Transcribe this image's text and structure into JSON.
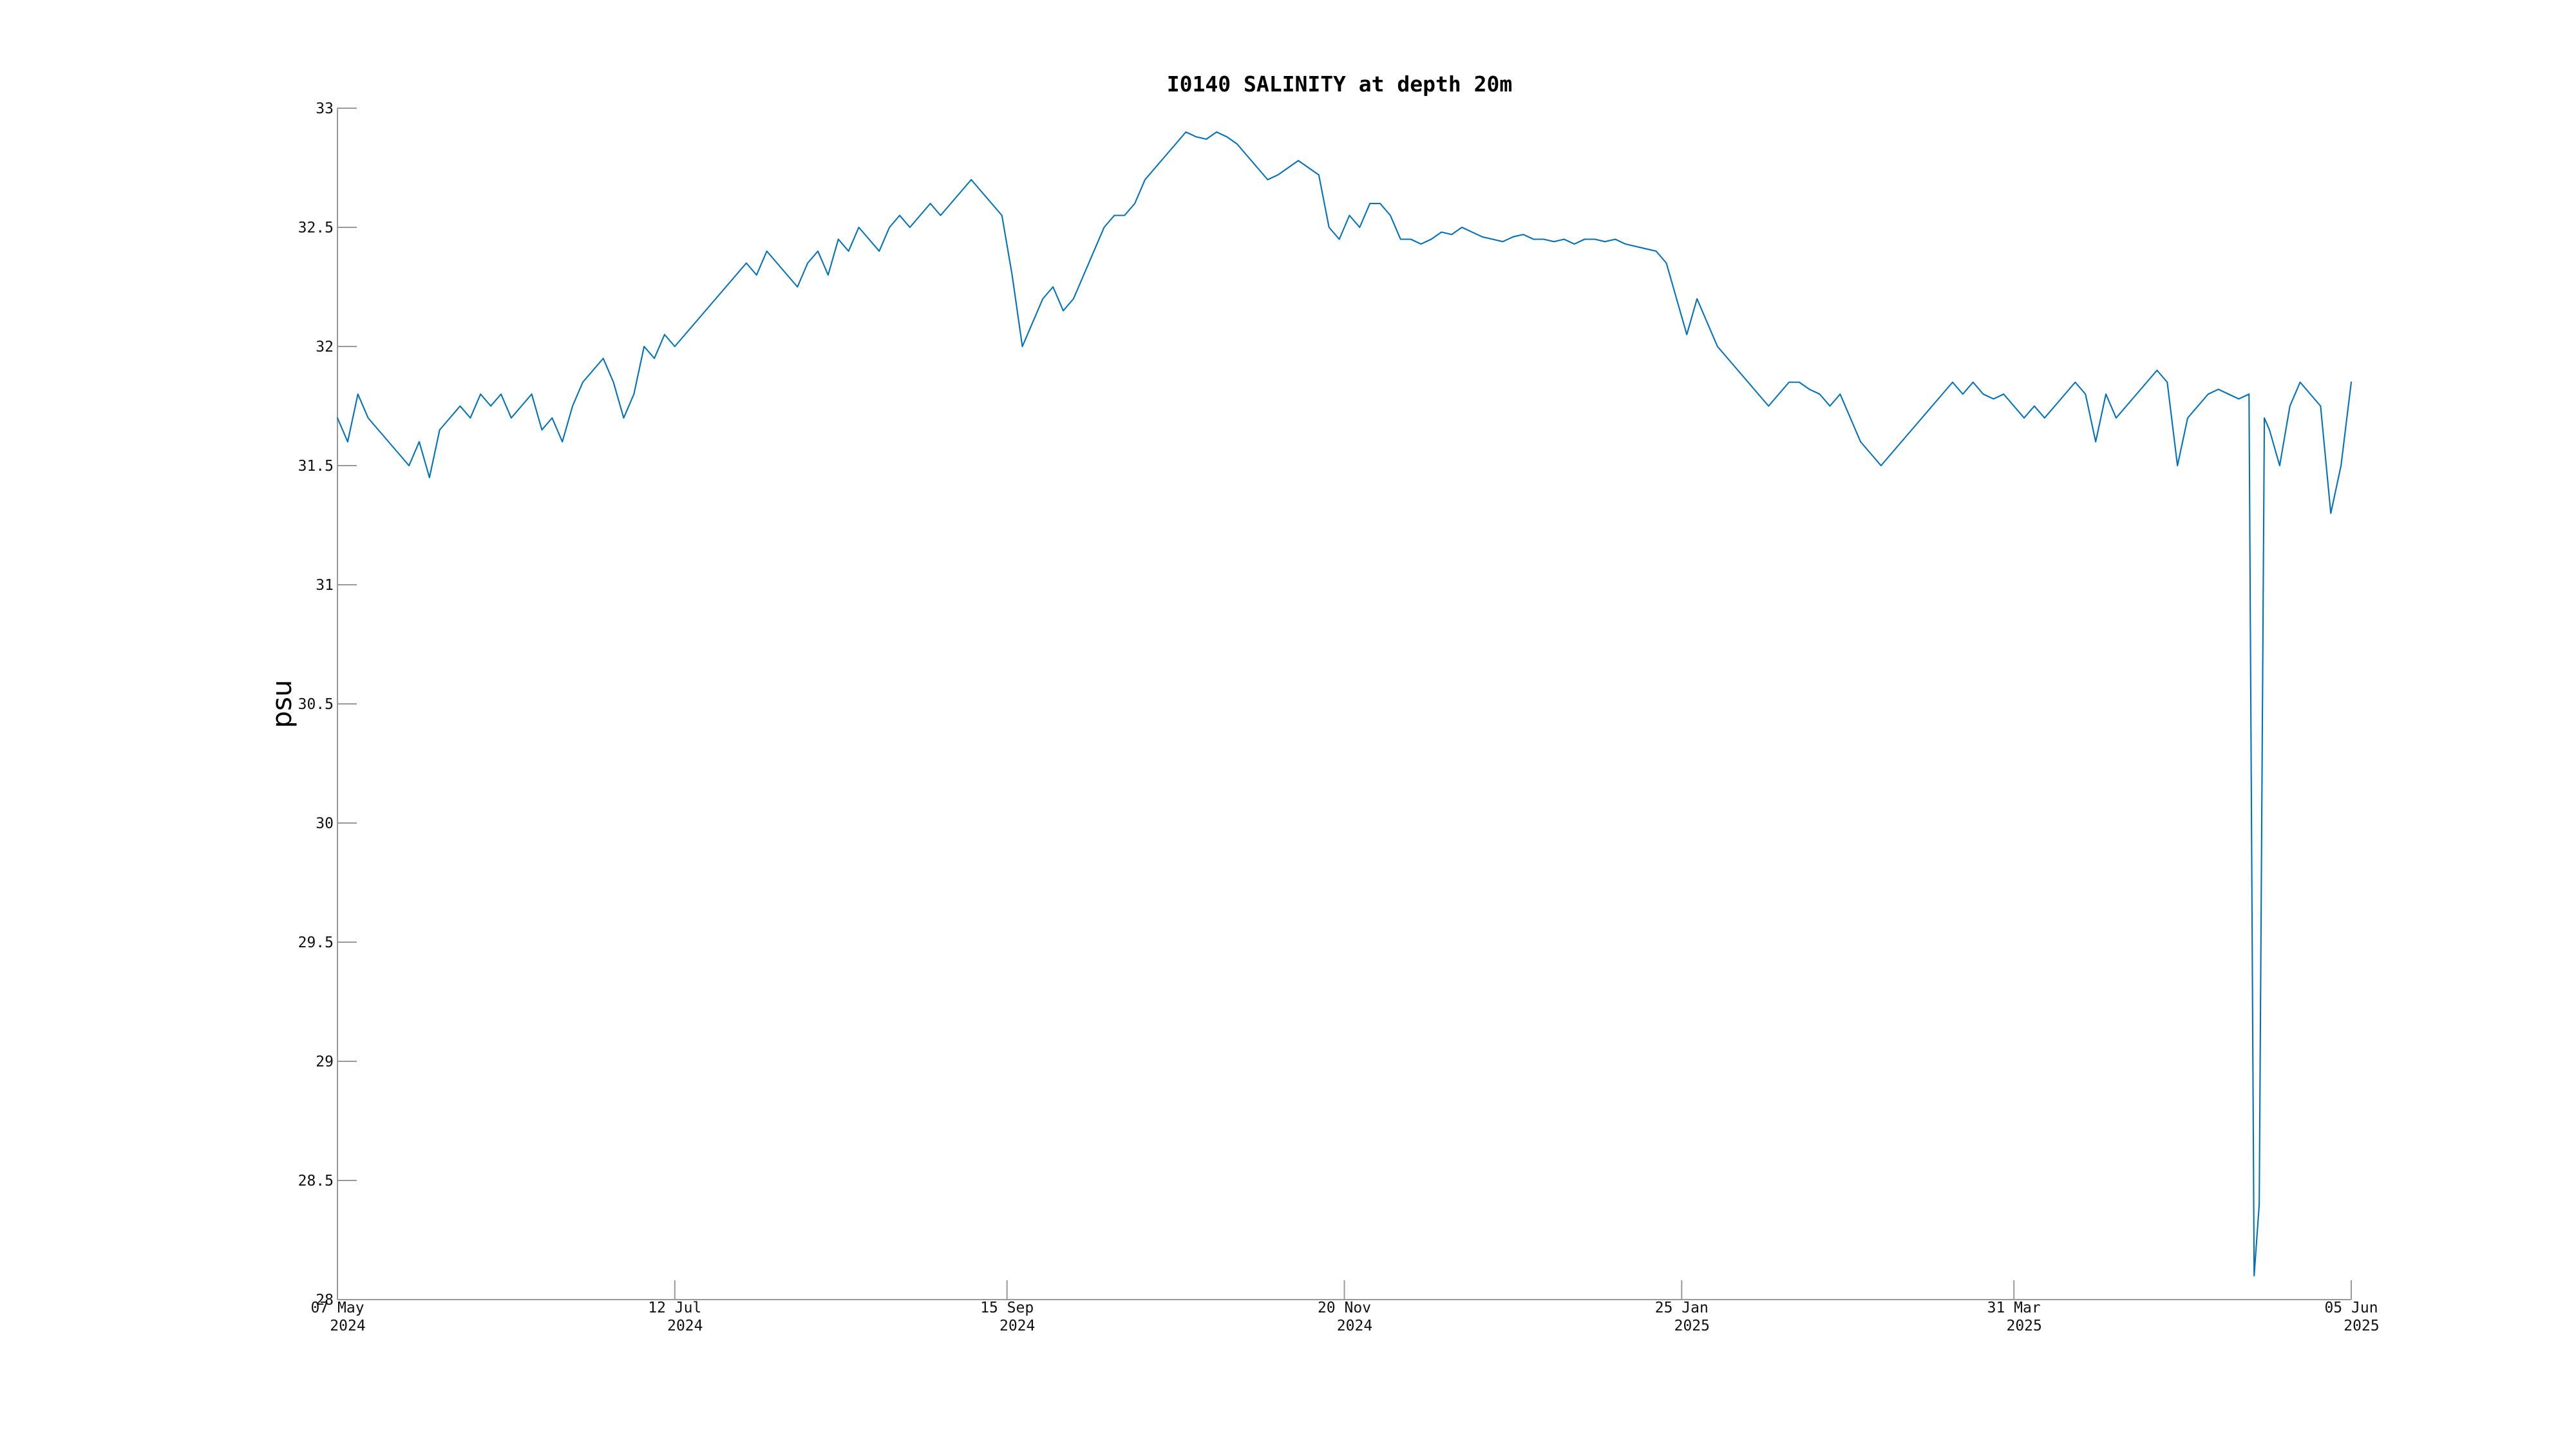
{
  "chart_data": {
    "type": "line",
    "title": "I0140 SALINITY at depth 20m",
    "xlabel": "",
    "ylabel": "psu",
    "xlim": [
      "2024-05-07",
      "2025-06-05"
    ],
    "ylim": [
      28,
      33
    ],
    "grid": false,
    "yticks": [
      {
        "value": 28,
        "label": "28"
      },
      {
        "value": 28.5,
        "label": "28.5"
      },
      {
        "value": 29,
        "label": "29"
      },
      {
        "value": 29.5,
        "label": "29.5"
      },
      {
        "value": 30,
        "label": "30"
      },
      {
        "value": 30.5,
        "label": "30.5"
      },
      {
        "value": 31,
        "label": "31"
      },
      {
        "value": 31.5,
        "label": "31.5"
      },
      {
        "value": 32,
        "label": "32"
      },
      {
        "value": 32.5,
        "label": "32.5"
      },
      {
        "value": 33,
        "label": "33"
      }
    ],
    "xticks": [
      {
        "value": "2024-05-07",
        "label1": "07 May",
        "label2": "2024"
      },
      {
        "value": "2024-07-12",
        "label1": "12 Jul",
        "label2": "2024"
      },
      {
        "value": "2024-09-15",
        "label1": "15 Sep",
        "label2": "2024"
      },
      {
        "value": "2024-11-20",
        "label1": "20 Nov",
        "label2": "2024"
      },
      {
        "value": "2025-01-25",
        "label1": "25 Jan",
        "label2": "2025"
      },
      {
        "value": "2025-03-31",
        "label1": "31 Mar",
        "label2": "2025"
      },
      {
        "value": "2025-06-05",
        "label1": "05 Jun",
        "label2": "2025"
      }
    ],
    "series": [
      {
        "color": "#0072bd",
        "x": [
          "2024-05-07",
          "2024-05-09",
          "2024-05-11",
          "2024-05-13",
          "2024-05-15",
          "2024-05-17",
          "2024-05-19",
          "2024-05-21",
          "2024-05-23",
          "2024-05-25",
          "2024-05-27",
          "2024-05-29",
          "2024-05-31",
          "2024-06-02",
          "2024-06-04",
          "2024-06-06",
          "2024-06-08",
          "2024-06-10",
          "2024-06-12",
          "2024-06-14",
          "2024-06-16",
          "2024-06-18",
          "2024-06-20",
          "2024-06-22",
          "2024-06-24",
          "2024-06-26",
          "2024-06-28",
          "2024-06-30",
          "2024-07-02",
          "2024-07-04",
          "2024-07-06",
          "2024-07-08",
          "2024-07-10",
          "2024-07-12",
          "2024-07-14",
          "2024-07-16",
          "2024-07-18",
          "2024-07-20",
          "2024-07-22",
          "2024-07-24",
          "2024-07-26",
          "2024-07-28",
          "2024-07-30",
          "2024-08-01",
          "2024-08-03",
          "2024-08-05",
          "2024-08-07",
          "2024-08-09",
          "2024-08-11",
          "2024-08-13",
          "2024-08-15",
          "2024-08-17",
          "2024-08-19",
          "2024-08-21",
          "2024-08-23",
          "2024-08-25",
          "2024-08-27",
          "2024-08-29",
          "2024-08-31",
          "2024-09-02",
          "2024-09-04",
          "2024-09-06",
          "2024-09-08",
          "2024-09-10",
          "2024-09-12",
          "2024-09-14",
          "2024-09-16",
          "2024-09-18",
          "2024-09-20",
          "2024-09-22",
          "2024-09-24",
          "2024-09-26",
          "2024-09-28",
          "2024-09-30",
          "2024-10-02",
          "2024-10-04",
          "2024-10-06",
          "2024-10-08",
          "2024-10-10",
          "2024-10-12",
          "2024-10-14",
          "2024-10-16",
          "2024-10-18",
          "2024-10-20",
          "2024-10-22",
          "2024-10-24",
          "2024-10-26",
          "2024-10-28",
          "2024-10-30",
          "2024-11-01",
          "2024-11-03",
          "2024-11-05",
          "2024-11-07",
          "2024-11-09",
          "2024-11-11",
          "2024-11-13",
          "2024-11-15",
          "2024-11-17",
          "2024-11-19",
          "2024-11-21",
          "2024-11-23",
          "2024-11-25",
          "2024-11-27",
          "2024-11-29",
          "2024-12-01",
          "2024-12-03",
          "2024-12-05",
          "2024-12-07",
          "2024-12-09",
          "2024-12-11",
          "2024-12-13",
          "2024-12-15",
          "2024-12-17",
          "2024-12-19",
          "2024-12-21",
          "2024-12-23",
          "2024-12-25",
          "2024-12-27",
          "2024-12-29",
          "2024-12-31",
          "2025-01-02",
          "2025-01-04",
          "2025-01-06",
          "2025-01-08",
          "2025-01-10",
          "2025-01-12",
          "2025-01-14",
          "2025-01-16",
          "2025-01-18",
          "2025-01-20",
          "2025-01-22",
          "2025-01-24",
          "2025-01-26",
          "2025-01-28",
          "2025-01-30",
          "2025-02-01",
          "2025-02-03",
          "2025-02-05",
          "2025-02-07",
          "2025-02-09",
          "2025-02-11",
          "2025-02-13",
          "2025-02-15",
          "2025-02-17",
          "2025-02-19",
          "2025-02-21",
          "2025-02-23",
          "2025-02-25",
          "2025-02-27",
          "2025-03-01",
          "2025-03-03",
          "2025-03-05",
          "2025-03-07",
          "2025-03-09",
          "2025-03-11",
          "2025-03-13",
          "2025-03-15",
          "2025-03-17",
          "2025-03-19",
          "2025-03-21",
          "2025-03-23",
          "2025-03-25",
          "2025-03-27",
          "2025-03-29",
          "2025-03-31",
          "2025-04-02",
          "2025-04-04",
          "2025-04-06",
          "2025-04-08",
          "2025-04-10",
          "2025-04-12",
          "2025-04-14",
          "2025-04-16",
          "2025-04-18",
          "2025-04-20",
          "2025-04-22",
          "2025-04-24",
          "2025-04-26",
          "2025-04-28",
          "2025-04-30",
          "2025-05-02",
          "2025-05-04",
          "2025-05-06",
          "2025-05-08",
          "2025-05-10",
          "2025-05-12",
          "2025-05-14",
          "2025-05-16",
          "2025-05-17",
          "2025-05-18",
          "2025-05-19",
          "2025-05-20",
          "2025-05-22",
          "2025-05-24",
          "2025-05-26",
          "2025-05-28",
          "2025-05-30",
          "2025-06-01",
          "2025-06-03",
          "2025-06-05"
        ],
        "y": [
          31.7,
          31.6,
          31.8,
          31.7,
          31.65,
          31.6,
          31.55,
          31.5,
          31.6,
          31.45,
          31.65,
          31.7,
          31.75,
          31.7,
          31.8,
          31.75,
          31.8,
          31.7,
          31.75,
          31.8,
          31.65,
          31.7,
          31.6,
          31.75,
          31.85,
          31.9,
          31.95,
          31.85,
          31.7,
          31.8,
          32.0,
          31.95,
          32.05,
          32.0,
          32.05,
          32.1,
          32.15,
          32.2,
          32.25,
          32.3,
          32.35,
          32.3,
          32.4,
          32.35,
          32.3,
          32.25,
          32.35,
          32.4,
          32.3,
          32.45,
          32.4,
          32.5,
          32.45,
          32.4,
          32.5,
          32.55,
          32.5,
          32.55,
          32.6,
          32.55,
          32.6,
          32.65,
          32.7,
          32.65,
          32.6,
          32.55,
          32.3,
          32.0,
          32.1,
          32.2,
          32.25,
          32.15,
          32.2,
          32.3,
          32.4,
          32.5,
          32.55,
          32.55,
          32.6,
          32.7,
          32.75,
          32.8,
          32.85,
          32.9,
          32.88,
          32.87,
          32.9,
          32.88,
          32.85,
          32.8,
          32.75,
          32.7,
          32.72,
          32.75,
          32.78,
          32.75,
          32.72,
          32.5,
          32.45,
          32.55,
          32.5,
          32.6,
          32.6,
          32.55,
          32.45,
          32.45,
          32.43,
          32.45,
          32.48,
          32.47,
          32.5,
          32.48,
          32.46,
          32.45,
          32.44,
          32.46,
          32.47,
          32.45,
          32.45,
          32.44,
          32.45,
          32.43,
          32.45,
          32.45,
          32.44,
          32.45,
          32.43,
          32.42,
          32.41,
          32.4,
          32.35,
          32.2,
          32.05,
          32.2,
          32.1,
          32.0,
          31.95,
          31.9,
          31.85,
          31.8,
          31.75,
          31.8,
          31.85,
          31.85,
          31.82,
          31.8,
          31.75,
          31.8,
          31.7,
          31.6,
          31.55,
          31.5,
          31.55,
          31.6,
          31.65,
          31.7,
          31.75,
          31.8,
          31.85,
          31.8,
          31.85,
          31.8,
          31.78,
          31.8,
          31.75,
          31.7,
          31.75,
          31.7,
          31.75,
          31.8,
          31.85,
          31.8,
          31.6,
          31.8,
          31.7,
          31.75,
          31.8,
          31.85,
          31.9,
          31.85,
          31.5,
          31.7,
          31.75,
          31.8,
          31.82,
          31.8,
          31.78,
          31.8,
          28.1,
          28.4,
          31.7,
          31.65,
          31.5,
          31.75,
          31.85,
          31.8,
          31.75,
          31.3,
          31.5,
          31.85
        ]
      }
    ]
  }
}
